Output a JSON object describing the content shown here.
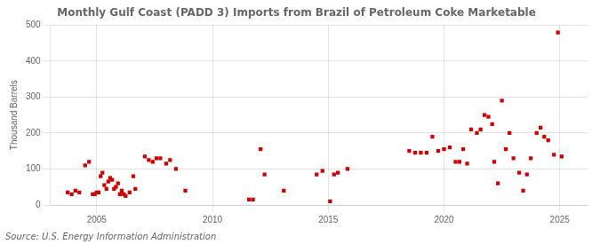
{
  "chart_data": {
    "type": "scatter",
    "title": "Monthly Gulf Coast (PADD 3) Imports from Brazil of Petroleum Coke Marketable",
    "ylabel": "Thousand Barrels",
    "source": "Source: U.S. Energy Information Administration",
    "color": "#cc0000",
    "marker": "square",
    "grid": true,
    "xlim": [
      2003.0,
      2026.2
    ],
    "ylim": [
      0,
      500
    ],
    "xticks": [
      2005,
      2010,
      2015,
      2020,
      2025
    ],
    "yticks": [
      0,
      100,
      200,
      300,
      400,
      500
    ],
    "x": [
      2003.75,
      2003.92,
      2004.08,
      2004.25,
      2004.5,
      2004.67,
      2004.83,
      2004.92,
      2005.0,
      2005.08,
      2005.17,
      2005.25,
      2005.33,
      2005.42,
      2005.5,
      2005.58,
      2005.67,
      2005.75,
      2005.83,
      2005.92,
      2006.0,
      2006.08,
      2006.17,
      2006.25,
      2006.42,
      2006.58,
      2006.67,
      2007.08,
      2007.25,
      2007.42,
      2007.58,
      2007.75,
      2008.0,
      2008.17,
      2008.42,
      2008.83,
      2011.58,
      2011.75,
      2012.08,
      2012.25,
      2013.08,
      2014.5,
      2014.75,
      2015.08,
      2015.25,
      2015.42,
      2015.83,
      2018.5,
      2018.75,
      2019.0,
      2019.25,
      2019.5,
      2019.75,
      2020.0,
      2020.25,
      2020.5,
      2020.67,
      2020.83,
      2021.0,
      2021.17,
      2021.42,
      2021.58,
      2021.75,
      2021.92,
      2022.08,
      2022.17,
      2022.33,
      2022.5,
      2022.67,
      2022.83,
      2023.0,
      2023.25,
      2023.42,
      2023.58,
      2023.75,
      2024.0,
      2024.17,
      2024.33,
      2024.5,
      2024.75,
      2024.92,
      2025.08
    ],
    "values": [
      35,
      30,
      40,
      35,
      110,
      120,
      30,
      30,
      35,
      35,
      80,
      90,
      55,
      45,
      65,
      75,
      70,
      45,
      50,
      60,
      30,
      40,
      30,
      25,
      35,
      80,
      45,
      135,
      125,
      120,
      130,
      130,
      115,
      125,
      100,
      40,
      15,
      15,
      155,
      85,
      40,
      85,
      95,
      10,
      85,
      90,
      100,
      150,
      145,
      145,
      145,
      190,
      150,
      155,
      160,
      120,
      120,
      155,
      115,
      210,
      200,
      210,
      250,
      245,
      225,
      120,
      60,
      290,
      155,
      200,
      130,
      90,
      40,
      85,
      130,
      200,
      215,
      190,
      180,
      140,
      480,
      135
    ]
  }
}
